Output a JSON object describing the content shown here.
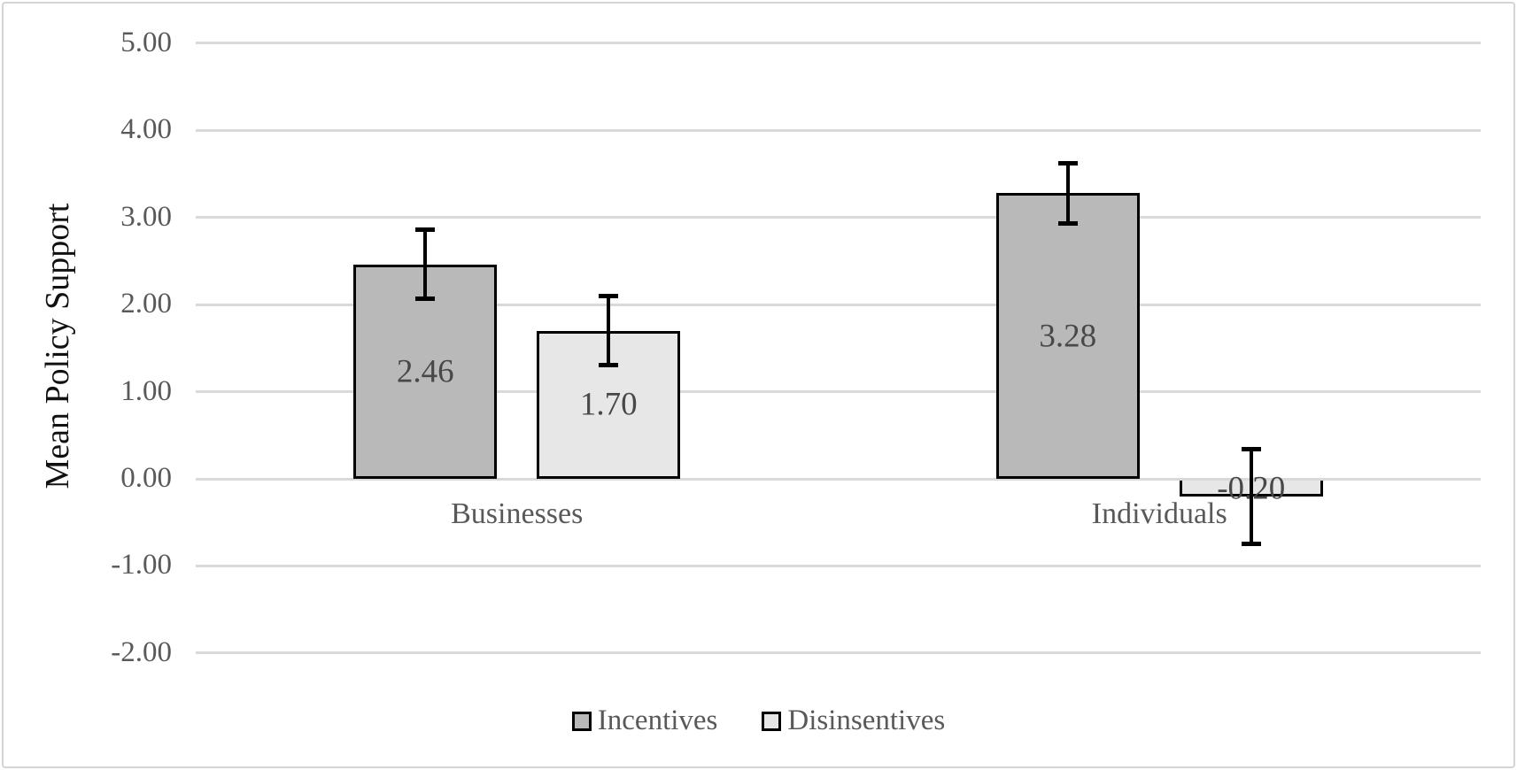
{
  "chart_data": {
    "type": "bar",
    "title": "",
    "ylabel": "Mean Policy Support",
    "xlabel": "",
    "categories": [
      "Businesses",
      "Individuals"
    ],
    "series": [
      {
        "name": "Incentives",
        "fill": "#b9b9b9",
        "values": [
          2.46,
          3.28
        ],
        "errors": [
          0.4,
          0.35
        ],
        "labels": [
          "2.46",
          "3.28"
        ]
      },
      {
        "name": "Disinsentives",
        "fill": "#e7e7e7",
        "values": [
          1.7,
          -0.2
        ],
        "errors": [
          0.4,
          0.55
        ],
        "labels": [
          "1.70",
          "-0.20"
        ]
      }
    ],
    "yticks": {
      "values": [
        5,
        4,
        3,
        2,
        1,
        0,
        -1,
        -2
      ],
      "labels": [
        "5.00",
        "4.00",
        "3.00",
        "2.00",
        "1.00",
        "0.00",
        "-1.00",
        "-2.00"
      ]
    },
    "ylim": [
      -2.45,
      5.0
    ],
    "grid": true,
    "legend_position": "bottom",
    "error_bars": true,
    "colors": {
      "bar_border": "#000000",
      "error_bar": "#000000",
      "gridline": "#d9d9d9",
      "tick_text": "#595959",
      "category_text": "#595959",
      "value_label_text": "#484848",
      "axis_title_text": "#111111",
      "frame_border": "#d4d4d4",
      "background": "#ffffff"
    }
  }
}
